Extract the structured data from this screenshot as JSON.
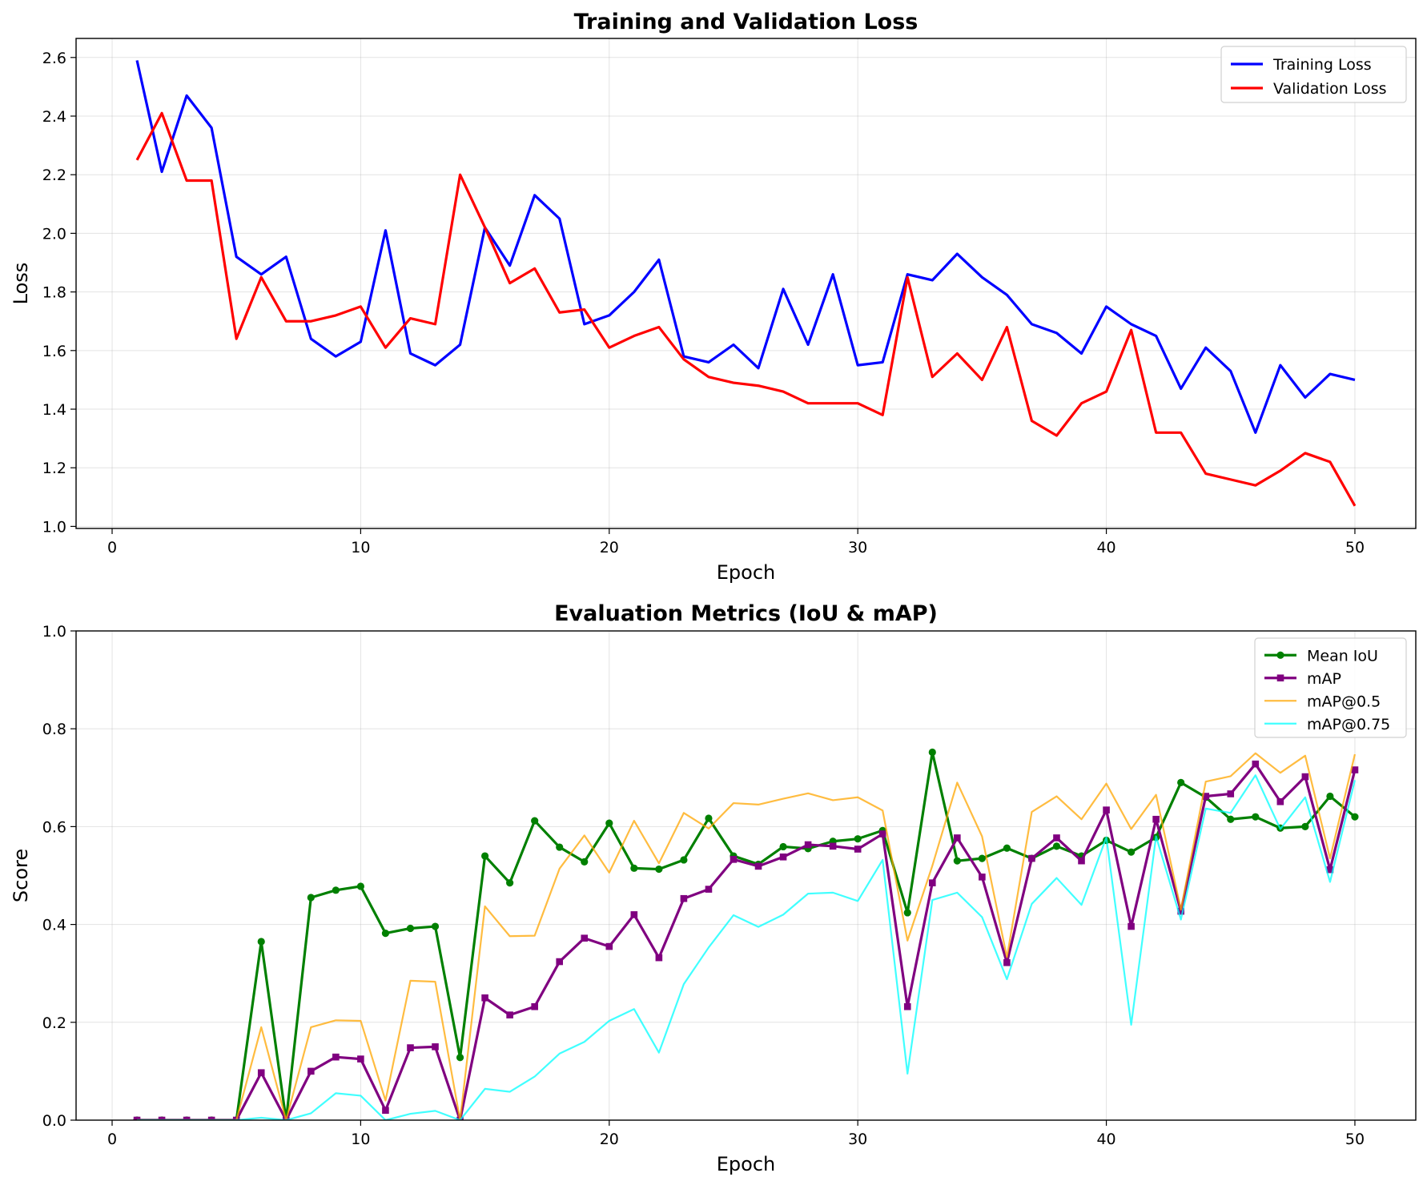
{
  "chart_data": [
    {
      "type": "line",
      "title": "Training and Validation Loss",
      "xlabel": "Epoch",
      "ylabel": "Loss",
      "xlim": [
        -1.45,
        52.45
      ],
      "ylim": [
        0.993,
        2.665
      ],
      "xticks": [
        0,
        10,
        20,
        30,
        40,
        50
      ],
      "yticks": [
        1.0,
        1.2,
        1.4,
        1.6,
        1.8,
        2.0,
        2.2,
        2.4,
        2.6
      ],
      "ytick_labels": [
        "1.0",
        "1.2",
        "1.4",
        "1.6",
        "1.8",
        "2.0",
        "2.2",
        "2.4",
        "2.6"
      ],
      "grid": true,
      "legend": "top-right",
      "x": [
        1,
        2,
        3,
        4,
        5,
        6,
        7,
        8,
        9,
        10,
        11,
        12,
        13,
        14,
        15,
        16,
        17,
        18,
        19,
        20,
        21,
        22,
        23,
        24,
        25,
        26,
        27,
        28,
        29,
        30,
        31,
        32,
        33,
        34,
        35,
        36,
        37,
        38,
        39,
        40,
        41,
        42,
        43,
        44,
        45,
        46,
        47,
        48,
        49,
        50
      ],
      "series": [
        {
          "name": "Training Loss",
          "color": "#0000ff",
          "values": [
            2.59,
            2.21,
            2.47,
            2.36,
            1.92,
            1.86,
            1.92,
            1.64,
            1.58,
            1.63,
            2.01,
            1.59,
            1.55,
            1.62,
            2.02,
            1.89,
            2.13,
            2.05,
            1.69,
            1.72,
            1.8,
            1.91,
            1.58,
            1.56,
            1.62,
            1.54,
            1.81,
            1.62,
            1.86,
            1.55,
            1.56,
            1.86,
            1.84,
            1.93,
            1.85,
            1.79,
            1.69,
            1.66,
            1.59,
            1.75,
            1.69,
            1.65,
            1.47,
            1.61,
            1.53,
            1.32,
            1.55,
            1.44,
            1.52,
            1.5
          ]
        },
        {
          "name": "Validation Loss",
          "color": "#ff0000",
          "values": [
            2.25,
            2.41,
            2.18,
            2.18,
            1.64,
            1.85,
            1.7,
            1.7,
            1.72,
            1.75,
            1.61,
            1.71,
            1.69,
            2.2,
            2.02,
            1.83,
            1.88,
            1.73,
            1.74,
            1.61,
            1.65,
            1.68,
            1.57,
            1.51,
            1.49,
            1.48,
            1.46,
            1.42,
            1.42,
            1.42,
            1.38,
            1.85,
            1.51,
            1.59,
            1.5,
            1.68,
            1.36,
            1.31,
            1.42,
            1.46,
            1.67,
            1.32,
            1.32,
            1.18,
            1.16,
            1.14,
            1.19,
            1.25,
            1.22,
            1.07
          ]
        }
      ]
    },
    {
      "type": "line",
      "title": "Evaluation Metrics (IoU & mAP)",
      "xlabel": "Epoch",
      "ylabel": "Score",
      "xlim": [
        -1.45,
        52.45
      ],
      "ylim": [
        0.0,
        1.0
      ],
      "xticks": [
        0,
        10,
        20,
        30,
        40,
        50
      ],
      "yticks": [
        0.0,
        0.2,
        0.4,
        0.6,
        0.8,
        1.0
      ],
      "ytick_labels": [
        "0.0",
        "0.2",
        "0.4",
        "0.6",
        "0.8",
        "1.0"
      ],
      "grid": true,
      "legend": "top-right",
      "x": [
        1,
        2,
        3,
        4,
        5,
        6,
        7,
        8,
        9,
        10,
        11,
        12,
        13,
        14,
        15,
        16,
        17,
        18,
        19,
        20,
        21,
        22,
        23,
        24,
        25,
        26,
        27,
        28,
        29,
        30,
        31,
        32,
        33,
        34,
        35,
        36,
        37,
        38,
        39,
        40,
        41,
        42,
        43,
        44,
        45,
        46,
        47,
        48,
        49,
        50
      ],
      "series": [
        {
          "name": "Mean IoU",
          "color": "#008000",
          "marker": "circle",
          "values": [
            0,
            0,
            0,
            0,
            0,
            0.365,
            0,
            0.455,
            0.47,
            0.478,
            0.382,
            0.392,
            0.396,
            0.128,
            0.54,
            0.485,
            0.612,
            0.558,
            0.528,
            0.607,
            0.515,
            0.513,
            0.532,
            0.617,
            0.54,
            0.523,
            0.559,
            0.555,
            0.57,
            0.575,
            0.592,
            0.424,
            0.752,
            0.53,
            0.535,
            0.556,
            0.535,
            0.56,
            0.54,
            0.572,
            0.548,
            0.578,
            0.69,
            0.66,
            0.615,
            0.62,
            0.597,
            0.6,
            0.662,
            0.62
          ]
        },
        {
          "name": "mAP",
          "color": "#800080",
          "marker": "square",
          "values": [
            0,
            0,
            0,
            0,
            0,
            0.097,
            0,
            0.1,
            0.129,
            0.125,
            0.02,
            0.148,
            0.15,
            0,
            0.25,
            0.215,
            0.232,
            0.324,
            0.372,
            0.355,
            0.42,
            0.332,
            0.453,
            0.472,
            0.533,
            0.519,
            0.538,
            0.563,
            0.56,
            0.554,
            0.585,
            0.232,
            0.485,
            0.577,
            0.497,
            0.322,
            0.535,
            0.577,
            0.53,
            0.634,
            0.396,
            0.615,
            0.427,
            0.662,
            0.667,
            0.728,
            0.651,
            0.702,
            0.512,
            0.716
          ]
        },
        {
          "name": "mAP@0.5",
          "color": "#ffa500",
          "marker": "none",
          "values": [
            0,
            0,
            0,
            0,
            0,
            0.19,
            0,
            0.19,
            0.204,
            0.203,
            0.04,
            0.285,
            0.283,
            0,
            0.437,
            0.376,
            0.377,
            0.514,
            0.582,
            0.506,
            0.612,
            0.525,
            0.628,
            0.596,
            0.648,
            0.645,
            0.657,
            0.668,
            0.654,
            0.66,
            0.633,
            0.367,
            0.52,
            0.69,
            0.58,
            0.333,
            0.63,
            0.662,
            0.615,
            0.688,
            0.595,
            0.665,
            0.43,
            0.692,
            0.703,
            0.75,
            0.71,
            0.745,
            0.535,
            0.748
          ]
        },
        {
          "name": "mAP@0.75",
          "color": "#00ffff",
          "marker": "none",
          "values": [
            0,
            0,
            0,
            0,
            0,
            0.005,
            0,
            0.014,
            0.055,
            0.05,
            0,
            0.013,
            0.019,
            0,
            0.064,
            0.058,
            0.089,
            0.136,
            0.16,
            0.203,
            0.227,
            0.138,
            0.278,
            0.353,
            0.419,
            0.395,
            0.42,
            0.463,
            0.465,
            0.448,
            0.532,
            0.095,
            0.45,
            0.465,
            0.415,
            0.288,
            0.442,
            0.495,
            0.44,
            0.578,
            0.195,
            0.58,
            0.41,
            0.637,
            0.628,
            0.705,
            0.595,
            0.66,
            0.487,
            0.695
          ]
        }
      ]
    }
  ]
}
